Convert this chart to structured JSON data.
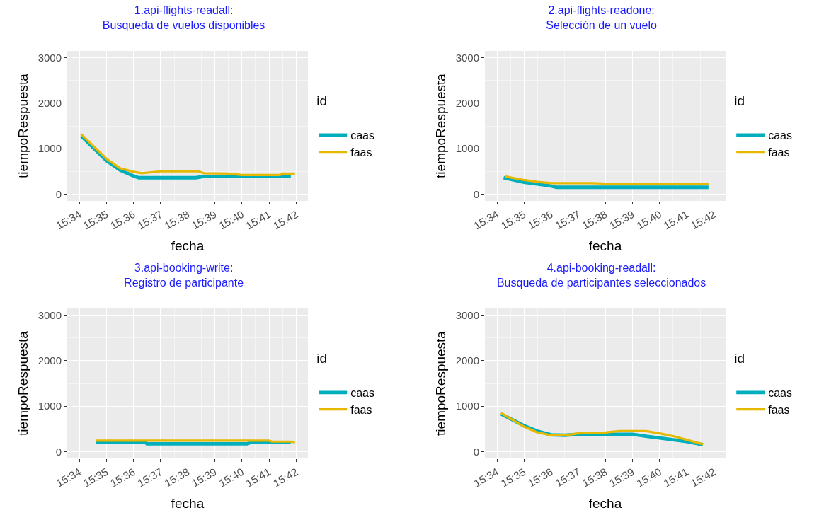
{
  "chart_data": [
    {
      "type": "line",
      "title": "1.api-flights-readall:\nBusqueda de vuelos disponibles",
      "xlabel": "fecha",
      "ylabel": "tiempoRespuesta",
      "legend_title": "id",
      "legend": "right",
      "grid": true,
      "marker": "none",
      "line_style": "solid",
      "xlim": [
        15.5593,
        15.7072
      ],
      "ylim": [
        -150,
        3150
      ],
      "yticks": [
        0,
        1000,
        2000,
        3000
      ],
      "xticks": [
        {
          "value": 15.5667,
          "label": "15:34"
        },
        {
          "value": 15.5833,
          "label": "15:35"
        },
        {
          "value": 15.6,
          "label": "15:36"
        },
        {
          "value": 15.6167,
          "label": "15:37"
        },
        {
          "value": 15.6333,
          "label": "15:38"
        },
        {
          "value": 15.65,
          "label": "15:39"
        },
        {
          "value": 15.6667,
          "label": "15:40"
        },
        {
          "value": 15.6833,
          "label": "15:41"
        },
        {
          "value": 15.7,
          "label": "15:42"
        }
      ],
      "series": [
        {
          "name": "caas",
          "color": "#00afbb",
          "x": [
            15.5678,
            15.5833,
            15.5917,
            15.6,
            15.6033,
            15.6383,
            15.6433,
            15.67,
            15.6733,
            15.6967
          ],
          "values": [
            1280,
            740,
            530,
            400,
            360,
            360,
            390,
            390,
            400,
            400
          ]
        },
        {
          "name": "faas",
          "color": "#e7b800",
          "x": [
            15.5678,
            15.5833,
            15.5917,
            15.6,
            15.605,
            15.6167,
            15.64,
            15.6433,
            15.6583,
            15.6667,
            15.69,
            15.6917,
            15.6992
          ],
          "values": [
            1320,
            780,
            570,
            490,
            460,
            500,
            500,
            460,
            450,
            420,
            420,
            450,
            450
          ]
        }
      ]
    },
    {
      "type": "line",
      "title": "2.api-flights-readone:\nSelección de un vuelo",
      "xlabel": "fecha",
      "ylabel": "tiempoRespuesta",
      "legend_title": "id",
      "legend": "right",
      "grid": true,
      "marker": "none",
      "line_style": "solid",
      "xlim": [
        15.5593,
        15.7072
      ],
      "ylim": [
        -150,
        3150
      ],
      "yticks": [
        0,
        1000,
        2000,
        3000
      ],
      "xticks": [
        {
          "value": 15.5667,
          "label": "15:34"
        },
        {
          "value": 15.5833,
          "label": "15:35"
        },
        {
          "value": 15.6,
          "label": "15:36"
        },
        {
          "value": 15.6167,
          "label": "15:37"
        },
        {
          "value": 15.6333,
          "label": "15:38"
        },
        {
          "value": 15.65,
          "label": "15:39"
        },
        {
          "value": 15.6667,
          "label": "15:40"
        },
        {
          "value": 15.6833,
          "label": "15:41"
        },
        {
          "value": 15.7,
          "label": "15:42"
        }
      ],
      "series": [
        {
          "name": "caas",
          "color": "#00afbb",
          "x": [
            15.5708,
            15.5833,
            15.6,
            15.6033,
            15.6333,
            15.6967
          ],
          "values": [
            360,
            260,
            180,
            150,
            150,
            150
          ]
        },
        {
          "name": "faas",
          "color": "#e7b800",
          "x": [
            15.5717,
            15.5833,
            15.5917,
            15.6,
            15.625,
            15.6417,
            15.6833,
            15.6867,
            15.6967
          ],
          "values": [
            390,
            310,
            270,
            240,
            240,
            220,
            220,
            230,
            230
          ]
        }
      ]
    },
    {
      "type": "line",
      "title": "3.api-booking-write:\nRegistro de participante",
      "xlabel": "fecha",
      "ylabel": "tiempoRespuesta",
      "legend_title": "id",
      "legend": "right",
      "grid": true,
      "marker": "none",
      "line_style": "solid",
      "xlim": [
        15.5593,
        15.7072
      ],
      "ylim": [
        -150,
        3150
      ],
      "yticks": [
        0,
        1000,
        2000,
        3000
      ],
      "xticks": [
        {
          "value": 15.5667,
          "label": "15:34"
        },
        {
          "value": 15.5833,
          "label": "15:35"
        },
        {
          "value": 15.6,
          "label": "15:36"
        },
        {
          "value": 15.6167,
          "label": "15:37"
        },
        {
          "value": 15.6333,
          "label": "15:38"
        },
        {
          "value": 15.65,
          "label": "15:39"
        },
        {
          "value": 15.6667,
          "label": "15:40"
        },
        {
          "value": 15.6833,
          "label": "15:41"
        },
        {
          "value": 15.7,
          "label": "15:42"
        }
      ],
      "series": [
        {
          "name": "caas",
          "color": "#00afbb",
          "x": [
            15.5767,
            15.6075,
            15.6083,
            15.67,
            15.6717,
            15.6967
          ],
          "values": [
            200,
            200,
            170,
            170,
            200,
            200
          ]
        },
        {
          "name": "faas",
          "color": "#e7b800",
          "x": [
            15.5767,
            15.6833,
            15.685,
            15.6967,
            15.6992
          ],
          "values": [
            240,
            240,
            220,
            220,
            200
          ]
        }
      ]
    },
    {
      "type": "line",
      "title": "4.api-booking-readall:\nBusqueda de participantes seleccionados",
      "xlabel": "fecha",
      "ylabel": "tiempoRespuesta",
      "legend_title": "id",
      "legend": "right",
      "grid": true,
      "marker": "none",
      "line_style": "solid",
      "xlim": [
        15.5593,
        15.7072
      ],
      "ylim": [
        -150,
        3150
      ],
      "yticks": [
        0,
        1000,
        2000,
        3000
      ],
      "xticks": [
        {
          "value": 15.5667,
          "label": "15:34"
        },
        {
          "value": 15.5833,
          "label": "15:35"
        },
        {
          "value": 15.6,
          "label": "15:36"
        },
        {
          "value": 15.6167,
          "label": "15:37"
        },
        {
          "value": 15.6333,
          "label": "15:38"
        },
        {
          "value": 15.65,
          "label": "15:39"
        },
        {
          "value": 15.6667,
          "label": "15:40"
        },
        {
          "value": 15.6833,
          "label": "15:41"
        },
        {
          "value": 15.7,
          "label": "15:42"
        }
      ],
      "series": [
        {
          "name": "caas",
          "color": "#00afbb",
          "x": [
            15.5692,
            15.5833,
            15.5917,
            15.6,
            15.6083,
            15.6167,
            15.6333,
            15.65,
            15.6583,
            15.6667,
            15.675,
            15.6833,
            15.6933
          ],
          "values": [
            830,
            570,
            450,
            370,
            360,
            380,
            380,
            380,
            340,
            300,
            260,
            220,
            150
          ]
        },
        {
          "name": "faas",
          "color": "#e7b800",
          "x": [
            15.5692,
            15.5833,
            15.5917,
            15.6,
            15.6083,
            15.6167,
            15.6333,
            15.6417,
            15.65,
            15.6583,
            15.6667,
            15.675,
            15.6833,
            15.6933
          ],
          "values": [
            850,
            550,
            420,
            360,
            360,
            400,
            420,
            450,
            450,
            450,
            400,
            340,
            260,
            160
          ]
        }
      ]
    }
  ]
}
